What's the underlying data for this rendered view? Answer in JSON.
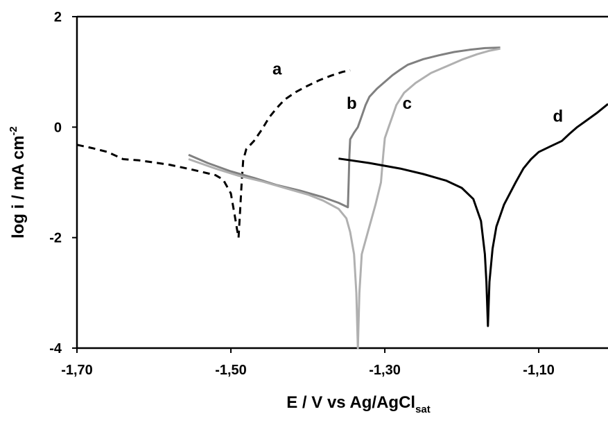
{
  "chart_data": {
    "type": "line",
    "xlabel": {
      "main": "E / V vs Ag/AgCl",
      "subscript": "sat"
    },
    "ylabel": {
      "main": "log i / mA cm",
      "superscript": "-2"
    },
    "xlim": [
      -1.7,
      -1.01
    ],
    "ylim": [
      -4,
      2
    ],
    "x_ticks": [
      -1.7,
      -1.5,
      -1.3,
      -1.1
    ],
    "x_tick_labels": [
      "-1,70",
      "-1,50",
      "-1,30",
      "-1,10"
    ],
    "y_ticks": [
      -4,
      -2,
      0,
      2
    ],
    "y_tick_labels": [
      "-4",
      "-2",
      "0",
      "2"
    ],
    "grid": false,
    "series": [
      {
        "name": "a",
        "color": "#000000",
        "dash": "10,7",
        "label_pos": [
          -1.44,
          0.95
        ],
        "points": [
          [
            -1.7,
            -0.32
          ],
          [
            -1.68,
            -0.38
          ],
          [
            -1.66,
            -0.45
          ],
          [
            -1.64,
            -0.58
          ],
          [
            -1.62,
            -0.6
          ],
          [
            -1.58,
            -0.68
          ],
          [
            -1.55,
            -0.77
          ],
          [
            -1.52,
            -0.87
          ],
          [
            -1.51,
            -0.95
          ],
          [
            -1.5,
            -1.2
          ],
          [
            -1.495,
            -1.6
          ],
          [
            -1.492,
            -1.85
          ],
          [
            -1.49,
            -2.0
          ],
          [
            -1.488,
            -1.5
          ],
          [
            -1.486,
            -1.0
          ],
          [
            -1.484,
            -0.6
          ],
          [
            -1.48,
            -0.4
          ],
          [
            -1.47,
            -0.25
          ],
          [
            -1.46,
            -0.05
          ],
          [
            -1.45,
            0.18
          ],
          [
            -1.44,
            0.35
          ],
          [
            -1.43,
            0.5
          ],
          [
            -1.415,
            0.64
          ],
          [
            -1.4,
            0.75
          ],
          [
            -1.385,
            0.85
          ],
          [
            -1.37,
            0.93
          ],
          [
            -1.355,
            1.0
          ],
          [
            -1.345,
            1.03
          ]
        ]
      },
      {
        "name": "b",
        "color": "#808080",
        "dash": "",
        "label_pos": [
          -1.343,
          0.33
        ],
        "points": [
          [
            -1.555,
            -0.5
          ],
          [
            -1.53,
            -0.65
          ],
          [
            -1.5,
            -0.8
          ],
          [
            -1.47,
            -0.92
          ],
          [
            -1.44,
            -1.05
          ],
          [
            -1.41,
            -1.15
          ],
          [
            -1.38,
            -1.27
          ],
          [
            -1.36,
            -1.37
          ],
          [
            -1.348,
            -1.45
          ],
          [
            -1.347,
            -1.0
          ],
          [
            -1.346,
            -0.5
          ],
          [
            -1.345,
            -0.22
          ],
          [
            -1.34,
            -0.1
          ],
          [
            -1.335,
            0.0
          ],
          [
            -1.33,
            0.2
          ],
          [
            -1.325,
            0.4
          ],
          [
            -1.32,
            0.55
          ],
          [
            -1.31,
            0.7
          ],
          [
            -1.3,
            0.82
          ],
          [
            -1.29,
            0.94
          ],
          [
            -1.28,
            1.04
          ],
          [
            -1.27,
            1.13
          ],
          [
            -1.25,
            1.23
          ],
          [
            -1.23,
            1.3
          ],
          [
            -1.21,
            1.36
          ],
          [
            -1.19,
            1.4
          ],
          [
            -1.17,
            1.43
          ],
          [
            -1.15,
            1.44
          ]
        ]
      },
      {
        "name": "c",
        "color": "#b0b0b0",
        "dash": "",
        "label_pos": [
          -1.271,
          0.33
        ],
        "points": [
          [
            -1.555,
            -0.58
          ],
          [
            -1.52,
            -0.75
          ],
          [
            -1.49,
            -0.88
          ],
          [
            -1.46,
            -0.98
          ],
          [
            -1.43,
            -1.1
          ],
          [
            -1.4,
            -1.22
          ],
          [
            -1.38,
            -1.33
          ],
          [
            -1.36,
            -1.48
          ],
          [
            -1.35,
            -1.65
          ],
          [
            -1.345,
            -1.9
          ],
          [
            -1.34,
            -2.3
          ],
          [
            -1.337,
            -3.0
          ],
          [
            -1.335,
            -4.0
          ],
          [
            -1.333,
            -3.0
          ],
          [
            -1.33,
            -2.3
          ],
          [
            -1.322,
            -1.9
          ],
          [
            -1.312,
            -1.4
          ],
          [
            -1.305,
            -1.0
          ],
          [
            -1.302,
            -0.5
          ],
          [
            -1.3,
            -0.2
          ],
          [
            -1.295,
            0.0
          ],
          [
            -1.29,
            0.2
          ],
          [
            -1.285,
            0.4
          ],
          [
            -1.275,
            0.62
          ],
          [
            -1.26,
            0.8
          ],
          [
            -1.24,
            0.98
          ],
          [
            -1.22,
            1.1
          ],
          [
            -1.2,
            1.22
          ],
          [
            -1.18,
            1.32
          ],
          [
            -1.165,
            1.38
          ],
          [
            -1.15,
            1.42
          ]
        ]
      },
      {
        "name": "d",
        "color": "#000000",
        "dash": "",
        "label_pos": [
          -1.075,
          0.1
        ],
        "points": [
          [
            -1.36,
            -0.57
          ],
          [
            -1.32,
            -0.65
          ],
          [
            -1.28,
            -0.75
          ],
          [
            -1.25,
            -0.85
          ],
          [
            -1.22,
            -0.97
          ],
          [
            -1.2,
            -1.1
          ],
          [
            -1.185,
            -1.3
          ],
          [
            -1.175,
            -1.7
          ],
          [
            -1.17,
            -2.3
          ],
          [
            -1.168,
            -2.8
          ],
          [
            -1.166,
            -3.6
          ],
          [
            -1.164,
            -2.8
          ],
          [
            -1.16,
            -2.2
          ],
          [
            -1.155,
            -1.8
          ],
          [
            -1.145,
            -1.4
          ],
          [
            -1.13,
            -1.0
          ],
          [
            -1.12,
            -0.75
          ],
          [
            -1.11,
            -0.58
          ],
          [
            -1.1,
            -0.45
          ],
          [
            -1.085,
            -0.35
          ],
          [
            -1.07,
            -0.25
          ],
          [
            -1.06,
            -0.12
          ],
          [
            -1.05,
            0.0
          ],
          [
            -1.04,
            0.1
          ],
          [
            -1.025,
            0.25
          ],
          [
            -1.01,
            0.42
          ]
        ]
      }
    ]
  }
}
